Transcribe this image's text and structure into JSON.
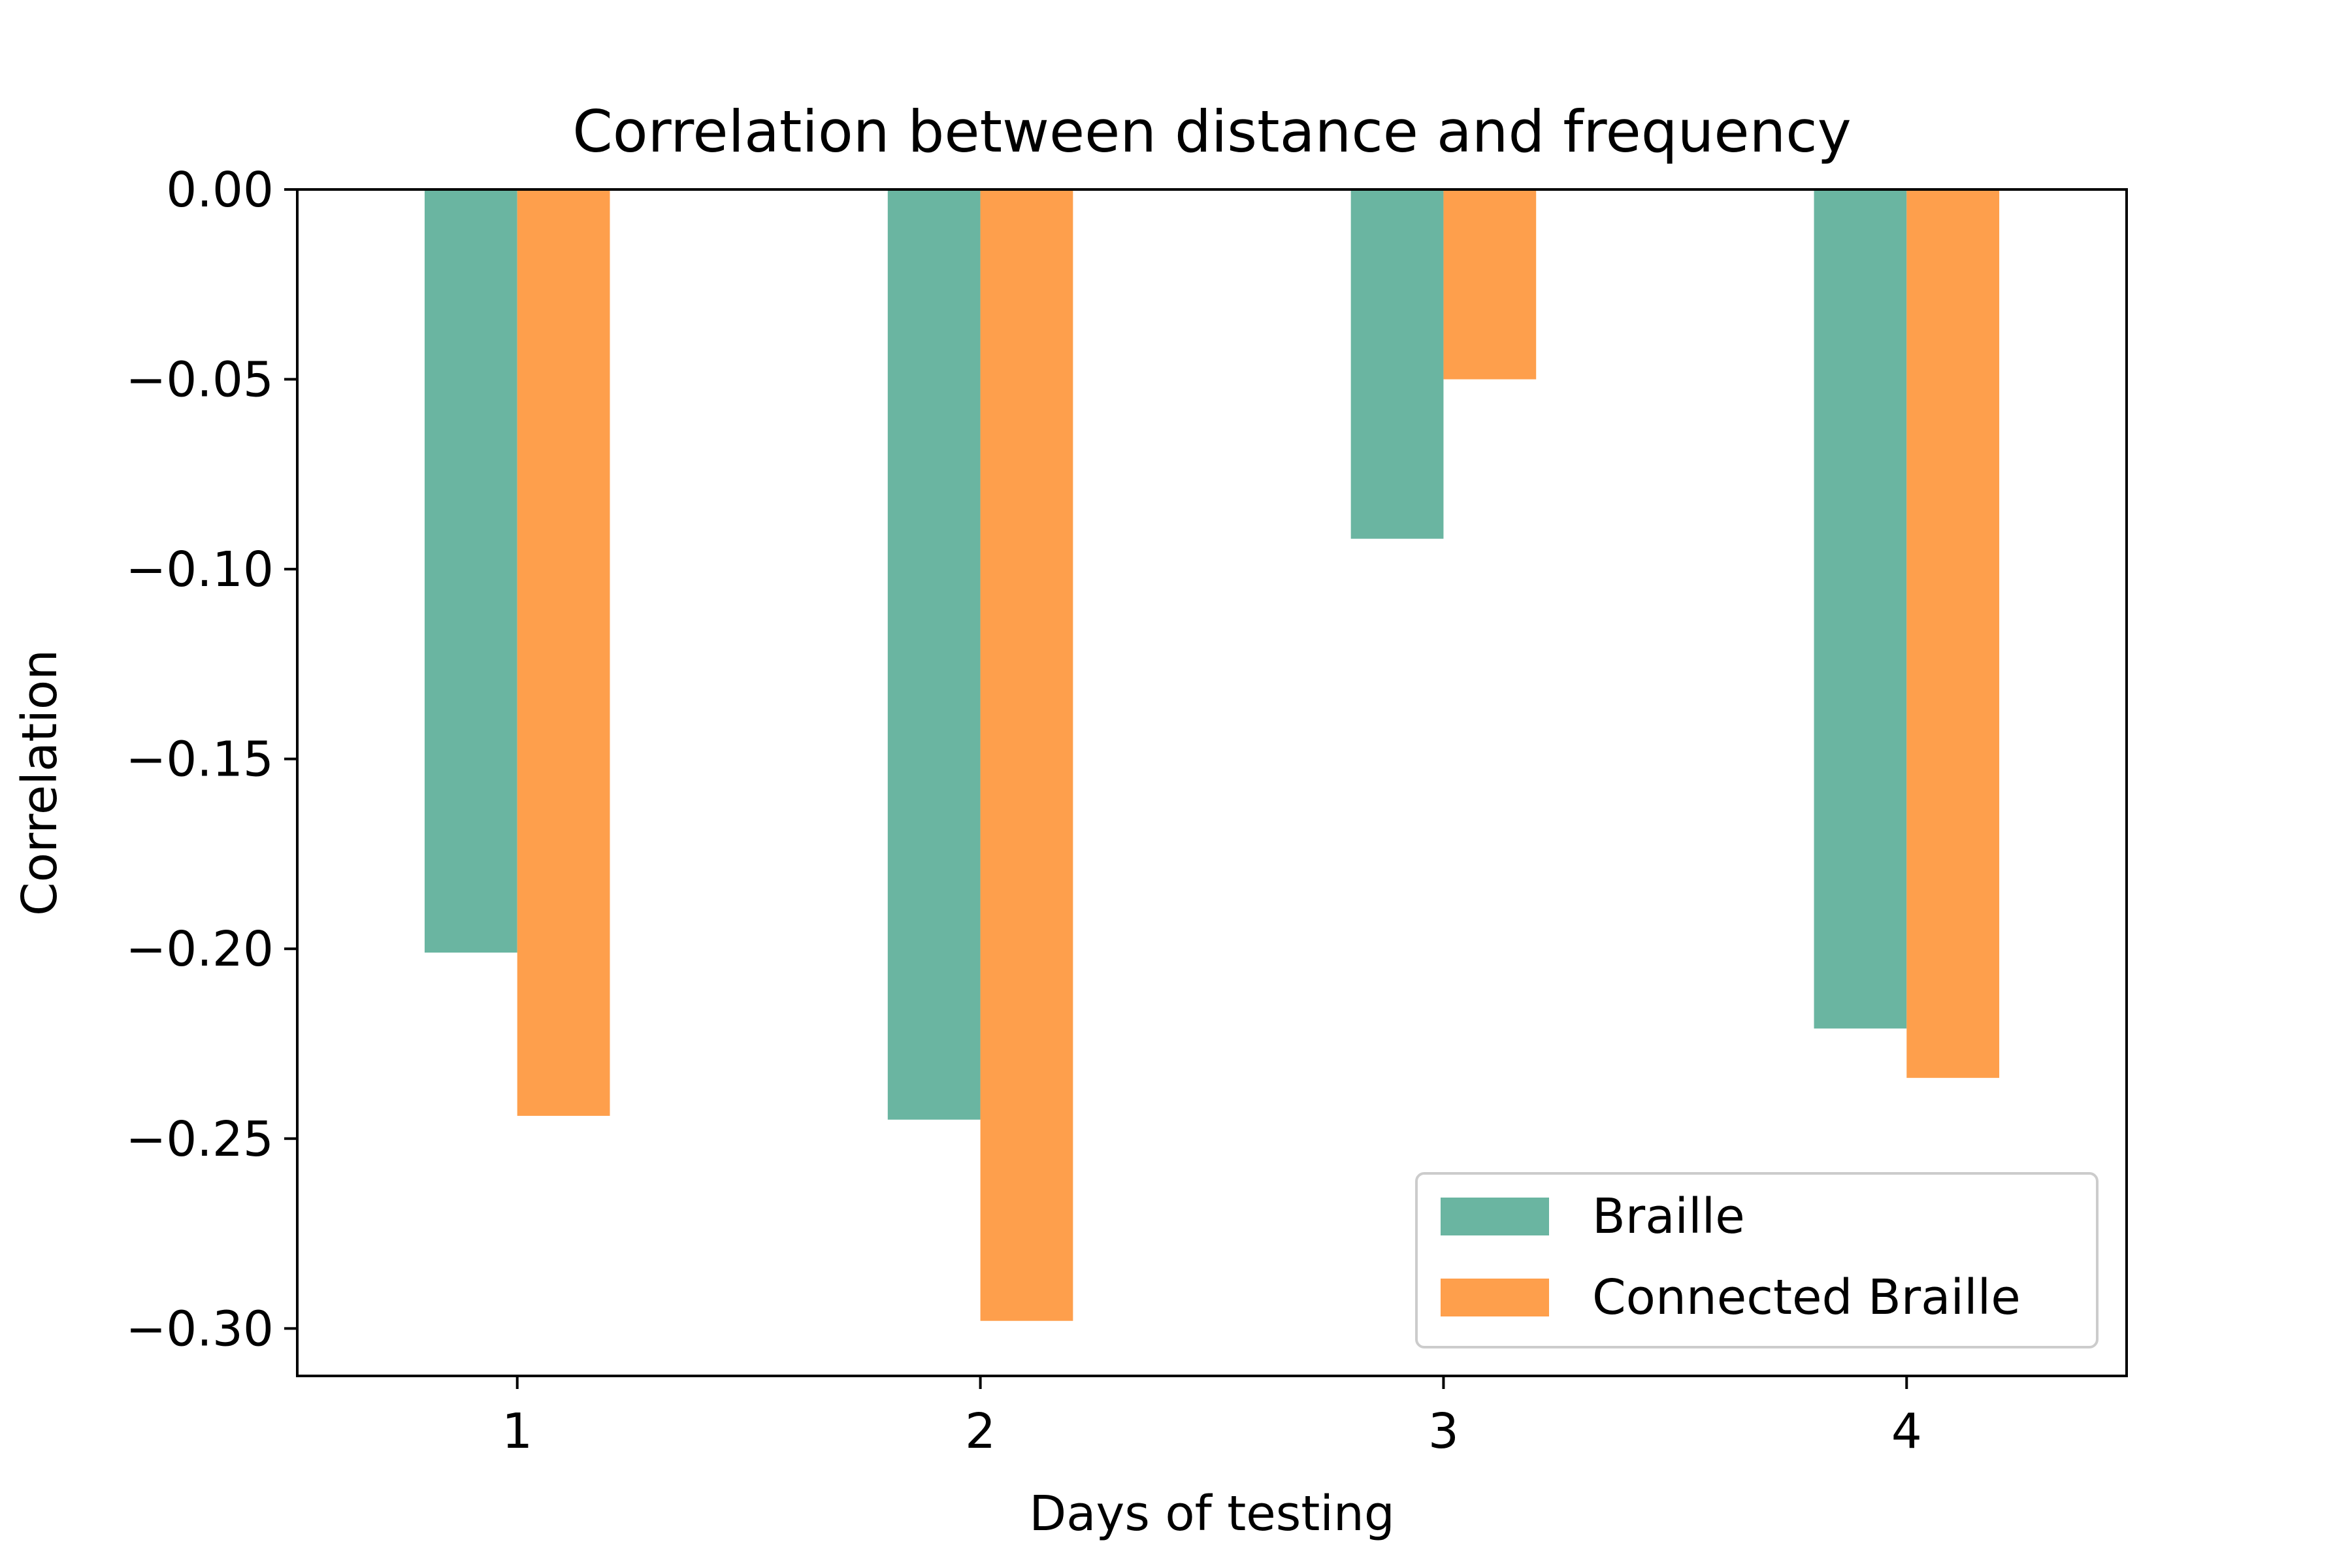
{
  "chart_data": {
    "type": "bar",
    "title": "Correlation between distance and frequency",
    "xlabel": "Days of testing",
    "ylabel": "Correlation",
    "categories": [
      "1",
      "2",
      "3",
      "4"
    ],
    "series": [
      {
        "name": "Braille",
        "color": "#6ab5a1",
        "values": [
          -0.201,
          -0.245,
          -0.092,
          -0.221
        ]
      },
      {
        "name": "Connected Braille",
        "color": "#fe9f4c",
        "values": [
          -0.244,
          -0.298,
          -0.05,
          -0.234
        ]
      }
    ],
    "ylim": [
      -0.3125,
      0.0
    ],
    "yticks": [
      0.0,
      -0.05,
      -0.1,
      -0.15,
      -0.2,
      -0.25,
      -0.3
    ],
    "ytick_labels": [
      "0.00",
      "−0.05",
      "−0.10",
      "−0.15",
      "−0.20",
      "−0.25",
      "−0.30"
    ],
    "grid": false,
    "legend_position": "bottom-right"
  }
}
